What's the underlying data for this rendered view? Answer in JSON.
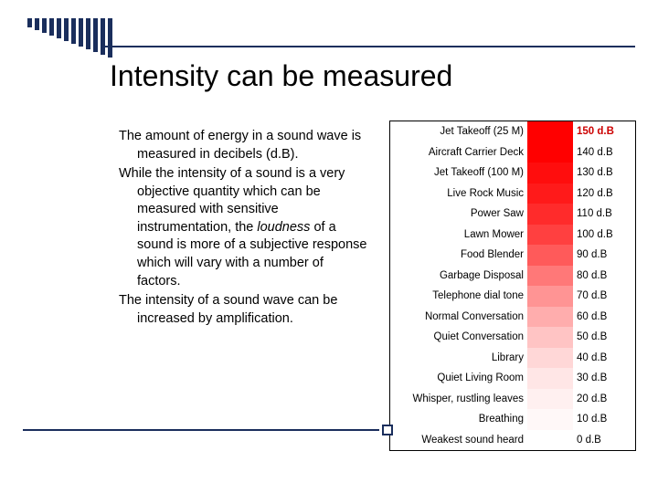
{
  "title": "Intensity can be measured",
  "paragraphs": [
    "The amount of energy in a sound wave is measured in decibels (d.B).",
    "While the intensity of a sound is a very objective quantity which can be measured with sensitive instrumentation, the <i>loudness</i> of a sound is more of a subjective response which will vary with a number of factors.",
    "The intensity of a sound wave can be increased by amplification."
  ],
  "decibel_table": {
    "rows": [
      {
        "source": "Jet Takeoff (25 M)",
        "db": "150 d.B",
        "red": true,
        "grad": "#ff0000"
      },
      {
        "source": "Aircraft Carrier Deck",
        "db": "140 d.B",
        "red": false,
        "grad": "#ff0000"
      },
      {
        "source": "Jet Takeoff (100 M)",
        "db": "130 d.B",
        "red": false,
        "grad": "#ff0d0d"
      },
      {
        "source": "Live Rock Music",
        "db": "120 d.B",
        "red": false,
        "grad": "#ff1a1a"
      },
      {
        "source": "Power Saw",
        "db": "110 d.B",
        "red": false,
        "grad": "#ff2b2b"
      },
      {
        "source": "Lawn Mower",
        "db": "100 d.B",
        "red": false,
        "grad": "#ff4040"
      },
      {
        "source": "Food Blender",
        "db": "90 d.B",
        "red": false,
        "grad": "#ff5a5a"
      },
      {
        "source": "Garbage Disposal",
        "db": "80 d.B",
        "red": false,
        "grad": "#ff7878"
      },
      {
        "source": "Telephone dial tone",
        "db": "70 d.B",
        "red": false,
        "grad": "#ff9494"
      },
      {
        "source": "Normal Conversation",
        "db": "60 d.B",
        "red": false,
        "grad": "#ffadad"
      },
      {
        "source": "Quiet Conversation",
        "db": "50 d.B",
        "red": false,
        "grad": "#ffc4c4"
      },
      {
        "source": "Library",
        "db": "40 d.B",
        "red": false,
        "grad": "#ffd7d7"
      },
      {
        "source": "Quiet Living Room",
        "db": "30 d.B",
        "red": false,
        "grad": "#ffe6e6"
      },
      {
        "source": "Whisper, rustling leaves",
        "db": "20 d.B",
        "red": false,
        "grad": "#fff0f0"
      },
      {
        "source": "Breathing",
        "db": "10 d.B",
        "red": false,
        "grad": "#fff8f8"
      },
      {
        "source": "Weakest sound heard",
        "db": "0 d.B",
        "red": false,
        "grad": "#ffffff"
      }
    ],
    "font_size": 11.5,
    "border_color": "#000000"
  },
  "decor": {
    "bar_color": "#1a2e5c",
    "bar_heights": [
      10,
      13,
      16,
      19,
      22,
      25,
      28,
      31,
      34,
      37,
      40,
      43
    ]
  }
}
